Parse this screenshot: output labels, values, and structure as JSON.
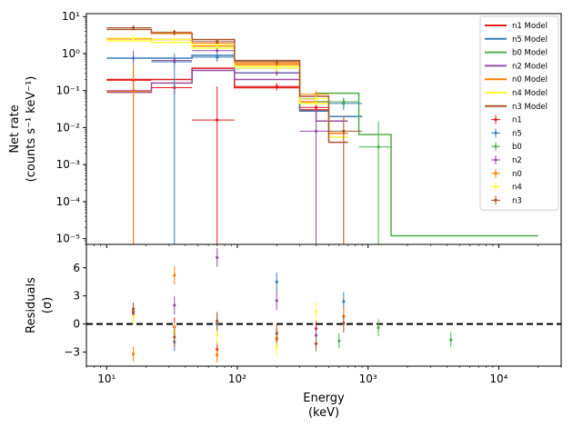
{
  "chart_data": [
    {
      "type": "line",
      "panel": "spectrum",
      "ylabel_lines": [
        "Net rate",
        "(counts s⁻¹ keV⁻¹)"
      ],
      "xscale": "log",
      "yscale": "log",
      "xlim": [
        7,
        30000
      ],
      "ylim": [
        7e-06,
        12
      ],
      "y_ticks": [
        {
          "v": 1e-05,
          "label": "10⁻⁵"
        },
        {
          "v": 0.0001,
          "label": "10⁻⁴"
        },
        {
          "v": 0.001,
          "label": "10⁻³"
        },
        {
          "v": 0.01,
          "label": "10⁻²"
        },
        {
          "v": 0.1,
          "label": "10⁻¹"
        },
        {
          "v": 1,
          "label": "10⁰"
        },
        {
          "v": 10,
          "label": "10¹"
        }
      ],
      "legend_location": "top-right",
      "models": [
        {
          "name": "n1 Model",
          "color": "#e41a1c",
          "edges": [
            10,
            22,
            45,
            95,
            300,
            500,
            900
          ],
          "values": [
            0.2,
            0.2,
            0.4,
            0.12,
            0.03,
            0.02
          ]
        },
        {
          "name": "n5 Model",
          "color": "#377eb8",
          "edges": [
            10,
            22,
            45,
            95,
            300,
            500,
            900
          ],
          "values": [
            0.75,
            0.75,
            0.9,
            0.3,
            0.028,
            0.02
          ]
        },
        {
          "name": "b0 Model",
          "color": "#4daf4a",
          "edges": [
            300,
            400,
            850,
            1500,
            20000
          ],
          "values": [
            0.06,
            0.085,
            0.0065,
            1.2e-05
          ]
        },
        {
          "name": "n2 Model",
          "color": "#984ea3",
          "edges": [
            10,
            22,
            45,
            95,
            300,
            400,
            700
          ],
          "values": [
            0.09,
            0.16,
            0.35,
            0.2,
            0.06,
            0.015
          ]
        },
        {
          "name": "n0 Model",
          "color": "#ff7f00",
          "edges": [
            10,
            22,
            45,
            95,
            300,
            500,
            700
          ],
          "values": [
            2.5,
            2.4,
            1.6,
            0.5,
            0.05,
            0.007
          ]
        },
        {
          "name": "n4 Model",
          "color": "#ffff33",
          "edges": [
            10,
            22,
            45,
            95,
            300,
            500,
            700
          ],
          "values": [
            2.2,
            2.0,
            1.4,
            0.45,
            0.045,
            0.0055
          ]
        },
        {
          "name": "n3 Model",
          "color": "#a65628",
          "edges": [
            10,
            22,
            45,
            95,
            300,
            500,
            700
          ],
          "values": [
            4.5,
            3.5,
            2.4,
            0.65,
            0.07,
            0.004
          ]
        }
      ],
      "data": [
        {
          "name": "n1",
          "color": "#e41a1c",
          "points": [
            {
              "x": 16,
              "y": 0.19,
              "xlo": 10,
              "xhi": 22,
              "ylo": 0.1,
              "yhi": 0.3
            },
            {
              "x": 33,
              "y": 0.12,
              "xlo": 22,
              "xhi": 45,
              "ylo": 0.08,
              "yhi": 0.16
            },
            {
              "x": 70,
              "y": 0.016,
              "xlo": 45,
              "xhi": 95,
              "ylo": 1e-07,
              "yhi": 0.13
            },
            {
              "x": 200,
              "y": 0.13,
              "xlo": 95,
              "xhi": 300,
              "ylo": 0.1,
              "yhi": 0.16
            },
            {
              "x": 400,
              "y": 0.035,
              "xlo": 300,
              "xhi": 500,
              "ylo": 0.025,
              "yhi": 0.05
            }
          ]
        },
        {
          "name": "n5",
          "color": "#377eb8",
          "points": [
            {
              "x": 16,
              "y": 0.75,
              "xlo": 10,
              "xhi": 22,
              "ylo": 0.6,
              "yhi": 0.9
            },
            {
              "x": 33,
              "y": 0.6,
              "xlo": 22,
              "xhi": 45,
              "ylo": 1e-07,
              "yhi": 1.0
            },
            {
              "x": 70,
              "y": 0.8,
              "xlo": 45,
              "xhi": 95,
              "ylo": 0.6,
              "yhi": 1.0
            },
            {
              "x": 200,
              "y": 0.4,
              "xlo": 95,
              "xhi": 300,
              "ylo": 0.33,
              "yhi": 0.48
            },
            {
              "x": 650,
              "y": 0.045,
              "xlo": 500,
              "xhi": 900,
              "ylo": 0.03,
              "yhi": 0.06
            }
          ]
        },
        {
          "name": "b0",
          "color": "#4daf4a",
          "points": [
            {
              "x": 650,
              "y": 0.05,
              "xlo": 400,
              "xhi": 850,
              "ylo": 0.035,
              "yhi": 0.065
            },
            {
              "x": 1200,
              "y": 0.003,
              "xlo": 850,
              "xhi": 1500,
              "ylo": 1e-07,
              "yhi": 0.015
            }
          ]
        },
        {
          "name": "n2",
          "color": "#984ea3",
          "points": [
            {
              "x": 16,
              "y": 0.1,
              "xlo": 10,
              "xhi": 22,
              "ylo": 1e-07,
              "yhi": 1.2
            },
            {
              "x": 33,
              "y": 0.65,
              "xlo": 22,
              "xhi": 45,
              "ylo": 0.5,
              "yhi": 0.8
            },
            {
              "x": 70,
              "y": 1.2,
              "xlo": 45,
              "xhi": 95,
              "ylo": 1.0,
              "yhi": 1.4
            },
            {
              "x": 200,
              "y": 0.3,
              "xlo": 95,
              "xhi": 300,
              "ylo": 0.25,
              "yhi": 0.35
            },
            {
              "x": 400,
              "y": 0.008,
              "xlo": 300,
              "xhi": 500,
              "ylo": 1e-07,
              "yhi": 0.03
            }
          ]
        },
        {
          "name": "n0",
          "color": "#ff7f00",
          "points": [
            {
              "x": 16,
              "y": 0.095,
              "xlo": 10,
              "xhi": 22,
              "ylo": 1e-07,
              "yhi": 0.5
            },
            {
              "x": 33,
              "y": 3.5,
              "xlo": 22,
              "xhi": 45,
              "ylo": 3.0,
              "yhi": 4.0
            },
            {
              "x": 70,
              "y": 1.9,
              "xlo": 45,
              "xhi": 95,
              "ylo": 1.6,
              "yhi": 2.2
            },
            {
              "x": 200,
              "y": 0.55,
              "xlo": 95,
              "xhi": 300,
              "ylo": 0.45,
              "yhi": 0.65
            },
            {
              "x": 400,
              "y": 0.08,
              "xlo": 300,
              "xhi": 500,
              "ylo": 0.05,
              "yhi": 0.1
            }
          ]
        },
        {
          "name": "n4",
          "color": "#ffff33",
          "points": [
            {
              "x": 16,
              "y": 2.6,
              "xlo": 10,
              "xhi": 22,
              "ylo": 2.0,
              "yhi": 3.2
            },
            {
              "x": 33,
              "y": 2.4,
              "xlo": 22,
              "xhi": 45,
              "ylo": 2.0,
              "yhi": 2.8
            },
            {
              "x": 70,
              "y": 1.7,
              "xlo": 45,
              "xhi": 95,
              "ylo": 1.4,
              "yhi": 2.0
            },
            {
              "x": 200,
              "y": 0.4,
              "xlo": 95,
              "xhi": 300,
              "ylo": 0.33,
              "yhi": 0.47
            },
            {
              "x": 400,
              "y": 0.06,
              "xlo": 300,
              "xhi": 500,
              "ylo": 0.04,
              "yhi": 0.08
            }
          ]
        },
        {
          "name": "n3",
          "color": "#a65628",
          "points": [
            {
              "x": 16,
              "y": 5.0,
              "xlo": 10,
              "xhi": 22,
              "ylo": 4.2,
              "yhi": 5.8
            },
            {
              "x": 33,
              "y": 3.8,
              "xlo": 22,
              "xhi": 45,
              "ylo": 3.2,
              "yhi": 4.4
            },
            {
              "x": 70,
              "y": 2.1,
              "xlo": 45,
              "xhi": 95,
              "ylo": 1.8,
              "yhi": 2.5
            },
            {
              "x": 200,
              "y": 0.6,
              "xlo": 95,
              "xhi": 300,
              "ylo": 0.5,
              "yhi": 0.7
            },
            {
              "x": 650,
              "y": 0.008,
              "xlo": 500,
              "xhi": 900,
              "ylo": 1e-07,
              "yhi": 0.02
            }
          ]
        }
      ]
    },
    {
      "type": "scatter",
      "panel": "residuals",
      "ylabel_lines": [
        "Residuals",
        "(σ)"
      ],
      "xlabel_lines": [
        "Energy",
        "(keV)"
      ],
      "xscale": "log",
      "xlim": [
        7,
        30000
      ],
      "ylim": [
        -4.5,
        8.5
      ],
      "y_ticks": [
        {
          "v": -3,
          "label": "−3"
        },
        {
          "v": 0,
          "label": "0"
        },
        {
          "v": 3,
          "label": "3"
        },
        {
          "v": 6,
          "label": "6"
        }
      ],
      "x_ticks": [
        {
          "v": 10,
          "label": "10¹"
        },
        {
          "v": 100,
          "label": "10²"
        },
        {
          "v": 1000,
          "label": "10³"
        },
        {
          "v": 10000,
          "label": "10⁴"
        }
      ],
      "reference_line": 0,
      "series": [
        {
          "name": "n1",
          "color": "#e41a1c",
          "points": [
            {
              "x": 16,
              "y": 1.3,
              "err": 0.7
            },
            {
              "x": 33,
              "y": -0.3,
              "err": 1.0
            },
            {
              "x": 70,
              "y": -2.7,
              "err": 0.9
            },
            {
              "x": 200,
              "y": -1.6,
              "err": 1.0
            },
            {
              "x": 400,
              "y": -0.5,
              "err": 1.0
            }
          ]
        },
        {
          "name": "n5",
          "color": "#377eb8",
          "points": [
            {
              "x": 16,
              "y": 1.0,
              "err": 0.8
            },
            {
              "x": 33,
              "y": -1.9,
              "err": 1.0
            },
            {
              "x": 70,
              "y": 0.0,
              "err": 1.0
            },
            {
              "x": 200,
              "y": 4.5,
              "err": 1.0
            },
            {
              "x": 650,
              "y": 2.4,
              "err": 1.0
            }
          ]
        },
        {
          "name": "b0",
          "color": "#4daf4a",
          "points": [
            {
              "x": 600,
              "y": -1.8,
              "err": 0.8
            },
            {
              "x": 1200,
              "y": -0.4,
              "err": 0.9
            },
            {
              "x": 4300,
              "y": -1.7,
              "err": 0.8
            }
          ]
        },
        {
          "name": "n2",
          "color": "#984ea3",
          "points": [
            {
              "x": 16,
              "y": 1.1,
              "err": 0.8
            },
            {
              "x": 33,
              "y": 2.0,
              "err": 1.0
            },
            {
              "x": 70,
              "y": 7.1,
              "err": 1.0
            },
            {
              "x": 200,
              "y": 2.5,
              "err": 1.0
            },
            {
              "x": 400,
              "y": -1.2,
              "err": 0.9
            }
          ]
        },
        {
          "name": "n0",
          "color": "#ff7f00",
          "points": [
            {
              "x": 16,
              "y": -3.2,
              "err": 0.8
            },
            {
              "x": 33,
              "y": 5.2,
              "err": 1.0
            },
            {
              "x": 70,
              "y": -3.3,
              "err": 0.8
            },
            {
              "x": 200,
              "y": -1.5,
              "err": 1.0
            },
            {
              "x": 650,
              "y": 0.8,
              "err": 1.0
            }
          ]
        },
        {
          "name": "n4",
          "color": "#ffff33",
          "points": [
            {
              "x": 16,
              "y": 0.9,
              "err": 0.8
            },
            {
              "x": 33,
              "y": -0.9,
              "err": 1.0
            },
            {
              "x": 70,
              "y": -1.2,
              "err": 1.0
            },
            {
              "x": 200,
              "y": -2.5,
              "err": 1.0
            },
            {
              "x": 400,
              "y": 1.3,
              "err": 1.0
            }
          ]
        },
        {
          "name": "n3",
          "color": "#a65628",
          "points": [
            {
              "x": 16,
              "y": 1.6,
              "err": 0.7
            },
            {
              "x": 33,
              "y": -1.4,
              "err": 1.0
            },
            {
              "x": 70,
              "y": 0.3,
              "err": 1.0
            },
            {
              "x": 200,
              "y": -1.0,
              "err": 1.0
            },
            {
              "x": 400,
              "y": -2.1,
              "err": 0.8
            },
            {
              "x": 650,
              "y": 0.1,
              "err": 1.0
            }
          ]
        }
      ]
    }
  ]
}
